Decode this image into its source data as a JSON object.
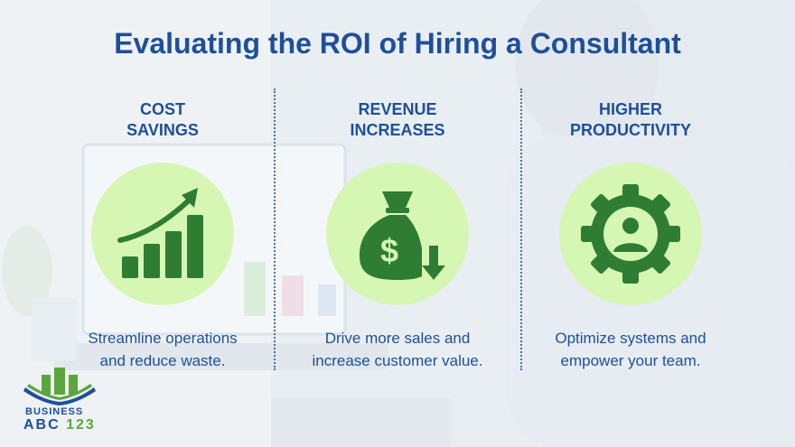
{
  "title": "Evaluating the ROI of Hiring a Consultant",
  "columns": [
    {
      "heading_line1": "COST",
      "heading_line2": "SAVINGS",
      "icon": "growth-chart-icon",
      "desc_line1": "Streamline operations",
      "desc_line2": "and reduce waste."
    },
    {
      "heading_line1": "REVENUE",
      "heading_line2": "INCREASES",
      "icon": "money-bag-icon",
      "desc_line1": "Drive more sales and",
      "desc_line2": "increase customer value."
    },
    {
      "heading_line1": "HIGHER",
      "heading_line2": "PRODUCTIVITY",
      "icon": "gear-person-icon",
      "desc_line1": "Optimize systems and",
      "desc_line2": "empower your team."
    }
  ],
  "logo": {
    "top_text": "BUSINESS",
    "abc_text": "ABC",
    "num_text": "123"
  },
  "colors": {
    "title": "#1e4f9a",
    "icon_green": "#2e7d32",
    "circle_fill": "#d6f7b4",
    "logo_green": "#5aa63c"
  }
}
